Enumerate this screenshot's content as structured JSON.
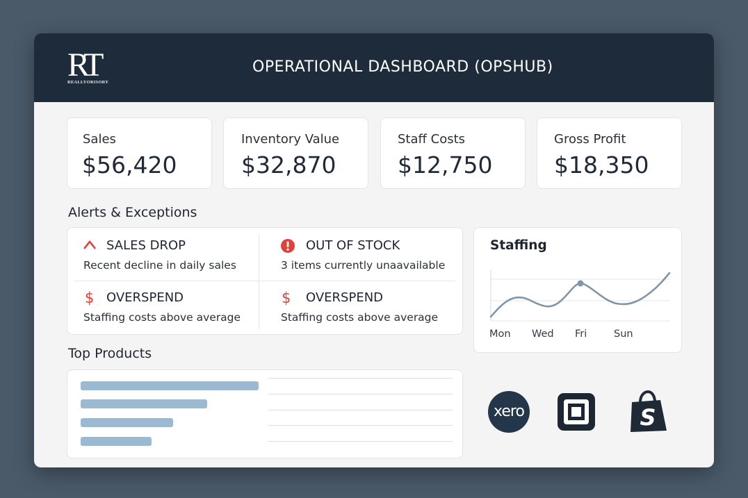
{
  "header": {
    "logo_text": "RT",
    "logo_subtext": "REALLYORISORY",
    "title": "OPERATIONAL DASHBOARD (OPSHUB)"
  },
  "kpis": [
    {
      "label": "Sales",
      "value": "$56,420"
    },
    {
      "label": "Inventory Value",
      "value": "$32,870"
    },
    {
      "label": "Staff Costs",
      "value": "$12,750"
    },
    {
      "label": "Gross Profit",
      "value": "$18,350"
    }
  ],
  "alerts": {
    "title": "Alerts & Exceptions",
    "items": [
      {
        "icon": "warning-chevron-icon",
        "title": "SALES DROP",
        "desc": "Recent decline in daily sales"
      },
      {
        "icon": "error-circle-icon",
        "title": "OUT OF STOCK",
        "desc": "3 items currently unaavailable"
      },
      {
        "icon": "dollar-icon",
        "title": "OVERSPEND",
        "desc": "Staffing costs above average"
      },
      {
        "icon": "dollar-icon",
        "title": "OVERSPEND",
        "desc": "Staffing costs above average"
      }
    ]
  },
  "staffing": {
    "title": "Staffing",
    "x_labels": [
      "Mon",
      "Wed",
      "Fri",
      "Sun"
    ]
  },
  "top_products": {
    "title": "Top Products",
    "bars": [
      1.0,
      0.71,
      0.52,
      0.4
    ]
  },
  "integrations": [
    {
      "name": "xero",
      "label": "xero",
      "icon": "xero-logo-icon"
    },
    {
      "name": "square",
      "icon": "square-logo-icon"
    },
    {
      "name": "shopify",
      "label": "S",
      "icon": "shopify-bag-icon"
    }
  ],
  "colors": {
    "header_bg": "#1d2b3a",
    "alert_red": "#e0413a",
    "bar_blue": "#9bb9d1",
    "line_gray": "#7f95a8"
  }
}
